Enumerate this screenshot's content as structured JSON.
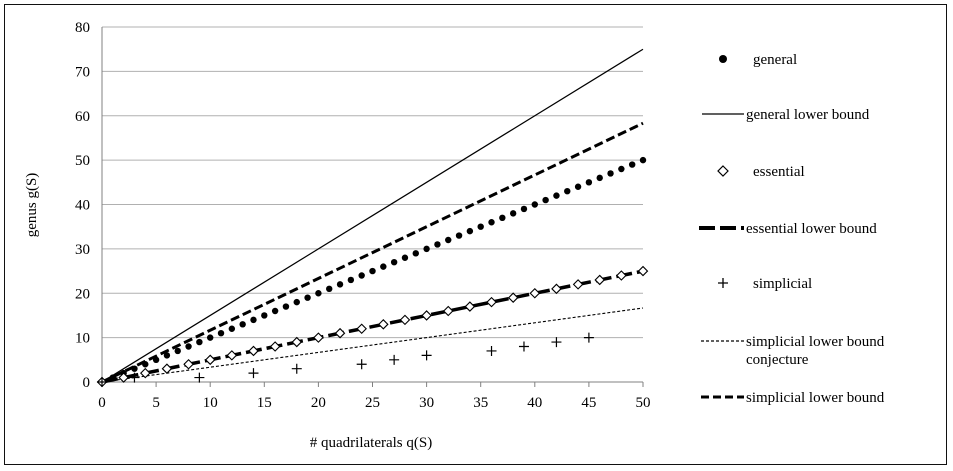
{
  "chart_data": {
    "type": "scatter",
    "xlabel": "# quadrilaterals q(S)",
    "ylabel": "genus g(S)",
    "xlim": [
      0,
      50
    ],
    "ylim": [
      0,
      80
    ],
    "xticks": [
      "0",
      "5",
      "10",
      "15",
      "20",
      "25",
      "30",
      "35",
      "40",
      "45",
      "50"
    ],
    "yticks": [
      "0",
      "10",
      "20",
      "30",
      "40",
      "50",
      "60",
      "70",
      "80"
    ],
    "grid": "horizontal",
    "legend_position": "right",
    "series": [
      {
        "name": "general",
        "style": "dots",
        "points": [
          [
            0,
            0
          ],
          [
            1,
            1
          ],
          [
            2,
            2
          ],
          [
            3,
            3
          ],
          [
            4,
            4
          ],
          [
            5,
            5
          ],
          [
            6,
            6
          ],
          [
            7,
            7
          ],
          [
            8,
            8
          ],
          [
            9,
            9
          ],
          [
            10,
            10
          ],
          [
            11,
            11
          ],
          [
            12,
            12
          ],
          [
            13,
            13
          ],
          [
            14,
            14
          ],
          [
            15,
            15
          ],
          [
            16,
            16
          ],
          [
            17,
            17
          ],
          [
            18,
            18
          ],
          [
            19,
            19
          ],
          [
            20,
            20
          ],
          [
            21,
            21
          ],
          [
            22,
            22
          ],
          [
            23,
            23
          ],
          [
            24,
            24
          ],
          [
            25,
            25
          ],
          [
            26,
            26
          ],
          [
            27,
            27
          ],
          [
            28,
            28
          ],
          [
            29,
            29
          ],
          [
            30,
            30
          ],
          [
            31,
            31
          ],
          [
            32,
            32
          ],
          [
            33,
            33
          ],
          [
            34,
            34
          ],
          [
            35,
            35
          ],
          [
            36,
            36
          ],
          [
            37,
            37
          ],
          [
            38,
            38
          ],
          [
            39,
            39
          ],
          [
            40,
            40
          ],
          [
            41,
            41
          ],
          [
            42,
            42
          ],
          [
            43,
            43
          ],
          [
            44,
            44
          ],
          [
            45,
            45
          ],
          [
            46,
            46
          ],
          [
            47,
            47
          ],
          [
            48,
            48
          ],
          [
            49,
            49
          ],
          [
            50,
            50
          ]
        ]
      },
      {
        "name": "general lower bound",
        "style": "solid-thin",
        "points": [
          [
            0,
            0
          ],
          [
            50,
            75
          ]
        ]
      },
      {
        "name": "essential",
        "style": "diamond",
        "points": [
          [
            0,
            0
          ],
          [
            2,
            1
          ],
          [
            4,
            2
          ],
          [
            6,
            3
          ],
          [
            8,
            4
          ],
          [
            10,
            5
          ],
          [
            12,
            6
          ],
          [
            14,
            7
          ],
          [
            16,
            8
          ],
          [
            18,
            9
          ],
          [
            20,
            10
          ],
          [
            22,
            11
          ],
          [
            24,
            12
          ],
          [
            26,
            13
          ],
          [
            28,
            14
          ],
          [
            30,
            15
          ],
          [
            32,
            16
          ],
          [
            34,
            17
          ],
          [
            36,
            18
          ],
          [
            38,
            19
          ],
          [
            40,
            20
          ],
          [
            42,
            21
          ],
          [
            44,
            22
          ],
          [
            46,
            23
          ],
          [
            48,
            24
          ],
          [
            50,
            25
          ]
        ]
      },
      {
        "name": "essential lower bound",
        "style": "dash-thick",
        "points": [
          [
            0,
            0
          ],
          [
            50,
            25
          ]
        ]
      },
      {
        "name": "simplicial",
        "style": "plus",
        "points": [
          [
            0,
            0
          ],
          [
            3,
            1
          ],
          [
            9,
            1
          ],
          [
            14,
            2
          ],
          [
            18,
            3
          ],
          [
            24,
            4
          ],
          [
            27,
            5
          ],
          [
            30,
            6
          ],
          [
            36,
            7
          ],
          [
            39,
            8
          ],
          [
            42,
            9
          ],
          [
            45,
            10
          ]
        ]
      },
      {
        "name": "simplicial lower bound conjecture",
        "style": "dash-thin",
        "points": [
          [
            0,
            0
          ],
          [
            50,
            16.67
          ]
        ]
      },
      {
        "name": "simplicial lower bound",
        "style": "dash-medium",
        "points": [
          [
            0,
            0
          ],
          [
            50,
            58.33
          ]
        ]
      }
    ]
  },
  "legend": {
    "general": "general",
    "general_lower_bound": "general lower bound",
    "essential": "essential",
    "essential_lower_bound": "essential lower bound",
    "simplicial": "simplicial",
    "simplicial_conj_line1": "simplicial lower bound",
    "simplicial_conj_line2": "conjecture",
    "simplicial_lower_bound": "simplicial lower bound"
  }
}
